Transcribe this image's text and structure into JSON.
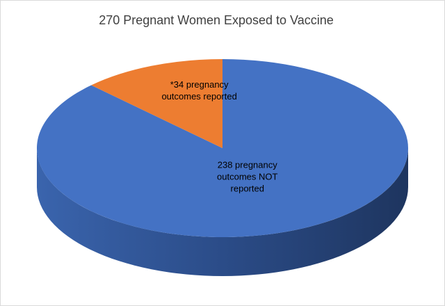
{
  "chart_data": {
    "type": "pie",
    "title": "270 Pregnant Women Exposed to Vaccine",
    "values": [
      238,
      34
    ],
    "value_labels": [
      "238 pregnancy outcomes NOT reported",
      "*34 pregnancy outcomes reported"
    ],
    "colors": [
      "#4472c4",
      "#ed7d31"
    ]
  }
}
